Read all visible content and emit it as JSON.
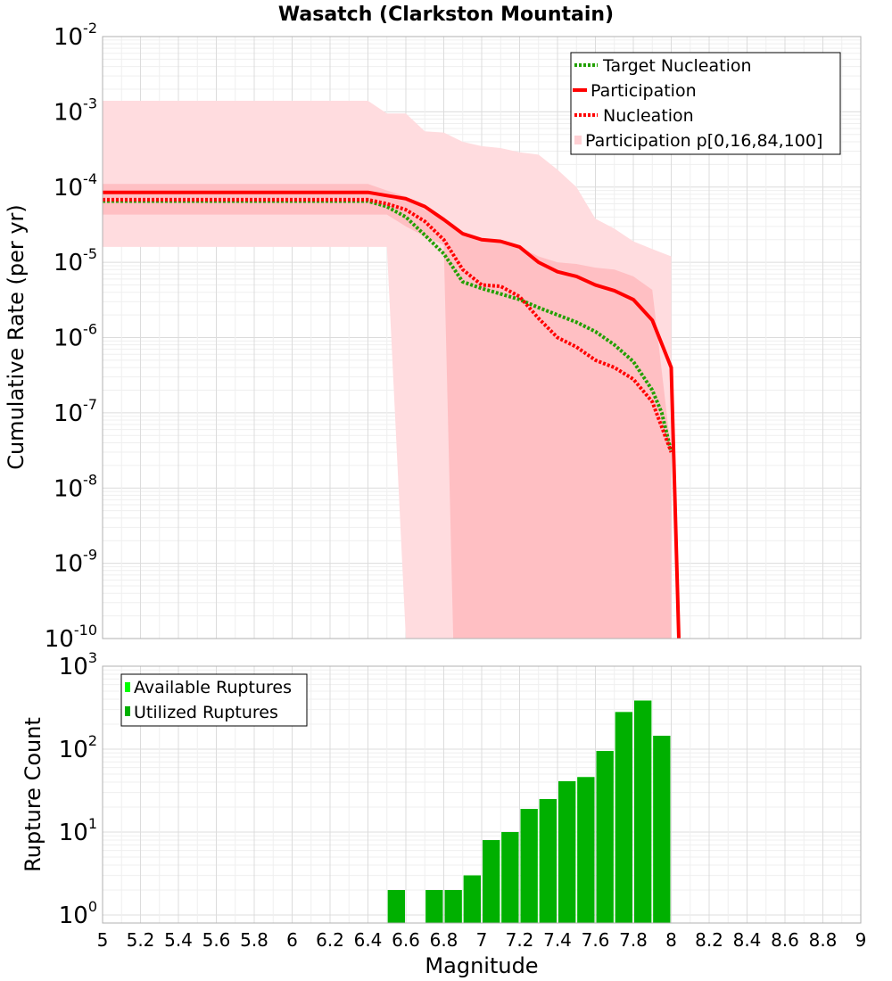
{
  "chart_data": [
    {
      "type": "line",
      "title": "Wasatch (Clarkston Mountain)",
      "ylabel": "Cumulative Rate (per yr)",
      "xlabel": "",
      "xlim": [
        5,
        9
      ],
      "ylim": [
        1e-10,
        0.01
      ],
      "yscale": "log",
      "y_exponents": [
        "-2",
        "-3",
        "-4",
        "-5",
        "-6",
        "-7",
        "-8",
        "-9",
        "-10"
      ],
      "y_base": "10",
      "legend": {
        "position": "top-right",
        "entries": [
          "Target Nucleation",
          "Participation",
          "Nucleation",
          "Participation p[0,16,84,100]"
        ]
      },
      "bands": [
        {
          "name": "Participation p[0,100]",
          "color": "#ffdcdf",
          "x": [
            5.0,
            6.4,
            6.5,
            6.6,
            6.7,
            6.8,
            6.9,
            7.0,
            7.1,
            7.2,
            7.3,
            7.4,
            7.5,
            7.6,
            7.7,
            7.8,
            7.9,
            8.0
          ],
          "upper": [
            0.0014,
            0.0014,
            0.00095,
            0.00095,
            0.00055,
            0.00053,
            0.0004,
            0.00035,
            0.00033,
            0.00029,
            0.00027,
            0.00017,
            0.0001,
            3.8e-05,
            2.8e-05,
            1.9e-05,
            1.5e-05,
            1.2e-05
          ],
          "lower": [
            1.6e-05,
            1.6e-05,
            1.6e-05,
            1e-10,
            1e-10,
            1e-10,
            1e-10,
            1e-10,
            1e-10,
            1e-10,
            1e-10,
            1e-10,
            1e-10,
            1e-10,
            1e-10,
            1e-10,
            1e-10,
            1e-10
          ]
        },
        {
          "name": "Participation p[16,84]",
          "color": "#ffbfc3",
          "x": [
            5.0,
            6.4,
            6.5,
            6.6,
            6.7,
            6.8,
            6.85,
            6.9,
            7.0,
            7.1,
            7.2,
            7.3,
            7.4,
            7.5,
            7.6,
            7.7,
            7.8,
            7.9,
            8.0
          ],
          "upper": [
            0.00011,
            0.00011,
            9e-05,
            7.5e-05,
            5e-05,
            3.6e-05,
            3e-05,
            2.3e-05,
            2e-05,
            1.9e-05,
            1.6e-05,
            1.2e-05,
            1e-05,
            9.5e-06,
            8.5e-06,
            8e-06,
            6.5e-06,
            4.3e-06,
            3e-08
          ],
          "lower": [
            4.3e-05,
            4.3e-05,
            4.3e-05,
            3e-05,
            2.2e-05,
            1.7e-05,
            1e-10,
            1e-10,
            1e-10,
            1e-10,
            1e-10,
            1e-10,
            1e-10,
            1e-10,
            1e-10,
            1e-10,
            1e-10,
            1e-10,
            1e-10
          ]
        }
      ],
      "series": [
        {
          "name": "Target Nucleation",
          "style": "dotted",
          "color": "#22a000",
          "x": [
            5.0,
            6.4,
            6.5,
            6.6,
            6.7,
            6.8,
            6.9,
            7.0,
            7.1,
            7.2,
            7.3,
            7.4,
            7.5,
            7.6,
            7.7,
            7.8,
            7.9,
            7.95,
            8.0
          ],
          "y": [
            6.5e-05,
            6.5e-05,
            5.5e-05,
            4e-05,
            2.3e-05,
            1.3e-05,
            5.5e-06,
            4.5e-06,
            3.8e-06,
            3.2e-06,
            2.5e-06,
            2e-06,
            1.6e-06,
            1.2e-06,
            8e-07,
            4.8e-07,
            2e-07,
            1e-07,
            3e-08
          ]
        },
        {
          "name": "Participation",
          "style": "solid",
          "color": "#ff0000",
          "x": [
            5.0,
            6.4,
            6.5,
            6.6,
            6.7,
            6.8,
            6.9,
            7.0,
            7.1,
            7.2,
            7.3,
            7.4,
            7.5,
            7.6,
            7.7,
            7.8,
            7.9,
            8.0,
            8.04
          ],
          "y": [
            8.5e-05,
            8.5e-05,
            7.7e-05,
            7e-05,
            5.5e-05,
            3.7e-05,
            2.4e-05,
            2e-05,
            1.9e-05,
            1.6e-05,
            1e-05,
            7.5e-06,
            6.5e-06,
            5e-06,
            4.2e-06,
            3.2e-06,
            1.7e-06,
            4e-07,
            1e-10
          ]
        },
        {
          "name": "Nucleation",
          "style": "dotted",
          "color": "#ff0000",
          "x": [
            5.0,
            6.4,
            6.5,
            6.6,
            6.7,
            6.8,
            6.9,
            7.0,
            7.1,
            7.2,
            7.3,
            7.4,
            7.5,
            7.6,
            7.7,
            7.8,
            7.9,
            8.0
          ],
          "y": [
            6.8e-05,
            6.8e-05,
            6e-05,
            5e-05,
            3.5e-05,
            2e-05,
            8e-06,
            5e-06,
            4.8e-06,
            3.5e-06,
            1.8e-06,
            1e-06,
            7.5e-07,
            5e-07,
            4e-07,
            2.8e-07,
            1.4e-07,
            3e-08
          ]
        }
      ]
    },
    {
      "type": "bar",
      "title": "",
      "ylabel": "Rupture Count",
      "xlabel": "Magnitude",
      "xlim": [
        5,
        9
      ],
      "ylim": [
        0.8,
        1000
      ],
      "yscale": "log",
      "y_exponents": [
        "3",
        "2",
        "1",
        "0"
      ],
      "y_base": "10",
      "x_ticks": [
        "5",
        "5.2",
        "5.4",
        "5.6",
        "5.8",
        "6",
        "6.2",
        "6.4",
        "6.6",
        "6.8",
        "7",
        "7.2",
        "7.4",
        "7.6",
        "7.8",
        "8",
        "8.2",
        "8.4",
        "8.6",
        "8.8",
        "9"
      ],
      "legend": {
        "position": "top-left",
        "entries": [
          "Available Ruptures",
          "Utilized Ruptures"
        ]
      },
      "bar_width": 0.1,
      "series": [
        {
          "name": "Available Ruptures",
          "color": "#00ff00",
          "x": [
            6.55,
            6.75,
            6.85,
            6.95,
            7.05,
            7.15,
            7.25,
            7.35,
            7.45,
            7.55,
            7.65,
            7.75,
            7.85,
            7.95
          ],
          "values": [
            2,
            2,
            2,
            3,
            8,
            10,
            19,
            25,
            41,
            46,
            95,
            280,
            385,
            145
          ]
        },
        {
          "name": "Utilized Ruptures",
          "color": "#00b000",
          "x": [
            6.55,
            6.75,
            6.85,
            6.95,
            7.05,
            7.15,
            7.25,
            7.35,
            7.45,
            7.55,
            7.65,
            7.75,
            7.85,
            7.95
          ],
          "values": [
            2,
            2,
            2,
            3,
            8,
            10,
            19,
            25,
            41,
            46,
            95,
            280,
            385,
            145
          ]
        }
      ]
    }
  ]
}
